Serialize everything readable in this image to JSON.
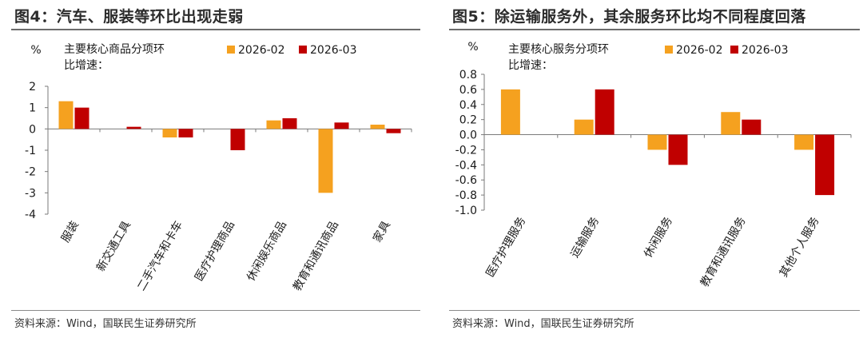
{
  "chart_data": [
    {
      "type": "bar",
      "title": "图4：汽车、服装等环比出现走弱",
      "unit": "%",
      "ylabel": "主要核心商品分项环比增速：",
      "categories": [
        "服装",
        "新交通工具",
        "二手汽车和卡车",
        "医疗护理商品",
        "休闲娱乐商品",
        "教育和通讯商品",
        "家具"
      ],
      "series": [
        {
          "name": "2026-02",
          "color": "#F5A11F",
          "values": [
            1.3,
            0.0,
            -0.4,
            0.0,
            0.4,
            -3.0,
            0.2
          ]
        },
        {
          "name": "2026-03",
          "color": "#C00000",
          "values": [
            1.0,
            0.1,
            -0.4,
            -1.0,
            0.5,
            0.3,
            -0.2
          ]
        }
      ],
      "ylim": [
        -4,
        2
      ],
      "yticks": [
        2,
        1,
        0,
        -1,
        -2,
        -3,
        -4
      ],
      "ytick_labels": [
        "2",
        "1",
        "0",
        "-1",
        "-2",
        "-3",
        "-4"
      ],
      "legend_position": "top-right",
      "source": "资料来源：Wind，国联民生证券研究所"
    },
    {
      "type": "bar",
      "title": "图5：除运输服务外，其余服务环比均不同程度回落",
      "unit": "%",
      "ylabel": "主要核心服务分项环比增速：",
      "categories": [
        "医疗护理服务",
        "运输服务",
        "休闲服务",
        "教育和通讯服务",
        "其他个人服务"
      ],
      "series": [
        {
          "name": "2026-02",
          "color": "#F5A11F",
          "values": [
            0.6,
            0.2,
            -0.2,
            0.3,
            -0.2
          ]
        },
        {
          "name": "2026-03",
          "color": "#C00000",
          "values": [
            0.0,
            0.6,
            -0.4,
            0.2,
            -0.8
          ]
        }
      ],
      "ylim": [
        -1.0,
        0.8
      ],
      "yticks": [
        0.8,
        0.6,
        0.4,
        0.2,
        0.0,
        -0.2,
        -0.4,
        -0.6,
        -0.8,
        -1.0
      ],
      "ytick_labels": [
        "0.8",
        "0.6",
        "0.4",
        "0.2",
        "0.0",
        "-0.2",
        "-0.4",
        "-0.6",
        "-0.8",
        "-1.0"
      ],
      "legend_position": "top-right",
      "source": "资料来源：Wind，国联民生证券研究所"
    }
  ]
}
